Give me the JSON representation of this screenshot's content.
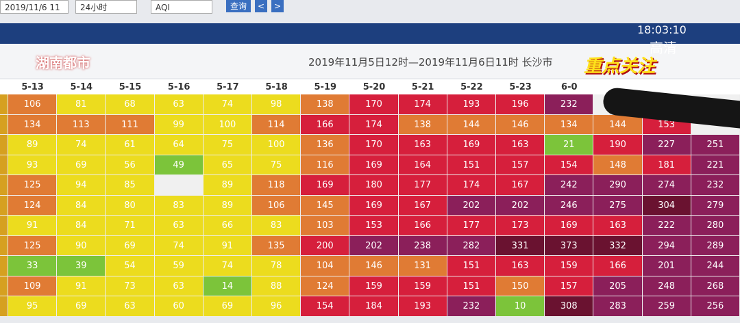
{
  "toolbar": {
    "date": "2019/11/6 11",
    "range": "24小时",
    "metric": "AQI",
    "query": "查询",
    "prev": "<",
    "next": ">"
  },
  "overlay": {
    "channel": "湖南都市",
    "time": "18:03:10",
    "quality": "高清",
    "banner": "重点关注"
  },
  "table": {
    "title": "2019年11月5日12时—2019年11月6日11时 长沙市",
    "headers": [
      "5-13",
      "5-14",
      "5-15",
      "5-16",
      "5-17",
      "5-18",
      "5-19",
      "5-20",
      "5-21",
      "5-22",
      "5-23",
      "6-0",
      null,
      null,
      null
    ],
    "color_scale": [
      {
        "max": 50,
        "color": "#7cc43a"
      },
      {
        "max": 100,
        "color": "#ecdc1e"
      },
      {
        "max": 150,
        "color": "#e07b34"
      },
      {
        "max": 200,
        "color": "#d61f3c"
      },
      {
        "max": 300,
        "color": "#8b1f5a"
      },
      {
        "max": 500,
        "color": "#6a1230"
      }
    ],
    "rows": [
      [
        106,
        81,
        68,
        63,
        74,
        98,
        138,
        170,
        174,
        193,
        196,
        232,
        null,
        null,
        null
      ],
      [
        134,
        113,
        111,
        99,
        100,
        114,
        166,
        174,
        138,
        144,
        146,
        134,
        144,
        153,
        null
      ],
      [
        89,
        74,
        61,
        64,
        75,
        100,
        136,
        170,
        163,
        169,
        163,
        21,
        190,
        227,
        251
      ],
      [
        93,
        69,
        56,
        49,
        65,
        75,
        116,
        169,
        164,
        151,
        157,
        154,
        148,
        181,
        221
      ],
      [
        125,
        94,
        85,
        null,
        89,
        118,
        169,
        180,
        177,
        174,
        167,
        242,
        290,
        274,
        232
      ],
      [
        124,
        84,
        80,
        83,
        89,
        106,
        145,
        169,
        167,
        202,
        202,
        246,
        275,
        304,
        279
      ],
      [
        91,
        84,
        71,
        63,
        66,
        83,
        103,
        153,
        166,
        177,
        173,
        169,
        163,
        222,
        280
      ],
      [
        125,
        90,
        69,
        74,
        91,
        135,
        200,
        202,
        238,
        282,
        331,
        373,
        332,
        294,
        289
      ],
      [
        33,
        39,
        54,
        59,
        74,
        78,
        104,
        146,
        131,
        151,
        163,
        159,
        166,
        201,
        244
      ],
      [
        109,
        91,
        73,
        63,
        14,
        88,
        124,
        159,
        159,
        151,
        150,
        157,
        205,
        248,
        268
      ],
      [
        95,
        69,
        63,
        60,
        69,
        96,
        154,
        184,
        193,
        232,
        10,
        308,
        283,
        259,
        256
      ]
    ]
  }
}
